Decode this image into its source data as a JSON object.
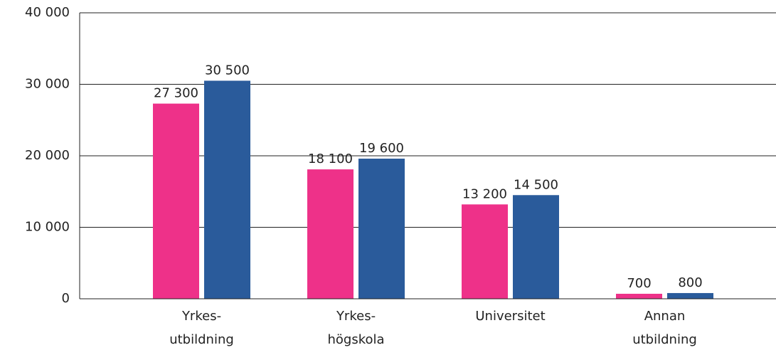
{
  "chart_data": {
    "type": "bar",
    "categories": [
      [
        "Yrkes-",
        "utbildning"
      ],
      [
        "Yrkes-",
        "högskola"
      ],
      [
        "Universitet"
      ],
      [
        "Annan",
        "utbildning"
      ]
    ],
    "series": [
      {
        "color": "#ee3189",
        "values": [
          27300,
          18100,
          13200,
          700
        ],
        "value_labels": [
          "27 300",
          "18 100",
          "13 200",
          "700"
        ]
      },
      {
        "color": "#2a5b9b",
        "values": [
          30500,
          19600,
          14500,
          800
        ],
        "value_labels": [
          "30 500",
          "19 600",
          "14 500",
          "800"
        ]
      }
    ],
    "ylim": [
      0,
      40000
    ],
    "yticks": [
      {
        "value": 0,
        "label": "0"
      },
      {
        "value": 10000,
        "label": "10 000"
      },
      {
        "value": 20000,
        "label": "20 000"
      },
      {
        "value": 30000,
        "label": "30 000"
      },
      {
        "value": 40000,
        "label": "40 000"
      }
    ],
    "grid": true
  }
}
